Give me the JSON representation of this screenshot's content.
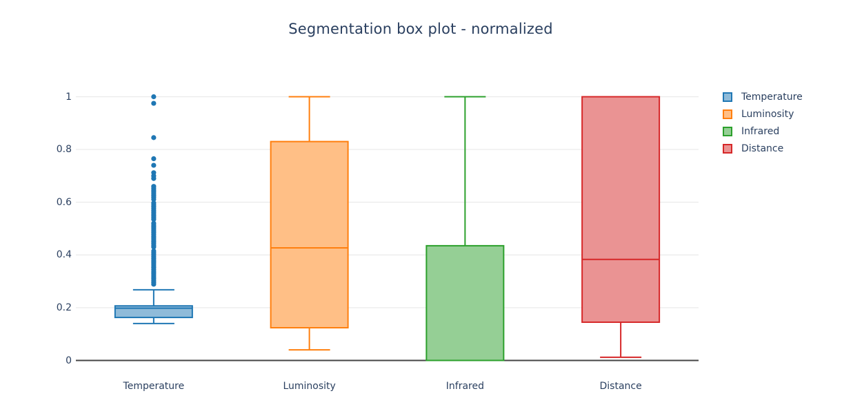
{
  "chart_data": {
    "type": "box",
    "title": "Segmentation box plot - normalized",
    "categories": [
      "Temperature",
      "Luminosity",
      "Infrared",
      "Distance"
    ],
    "yticks": [
      0,
      0.2,
      0.4,
      0.6,
      0.8,
      1
    ],
    "ytick_labels": [
      "0",
      "0.2",
      "0.4",
      "0.6",
      "0.8",
      "1"
    ],
    "ylim": [
      0,
      1
    ],
    "grid": true,
    "legend_position": "right",
    "colors": {
      "grid": "#ebebeb",
      "axis_line": "#444444",
      "font": "#2a3f5f",
      "background": "#ffffff"
    },
    "series": [
      {
        "name": "Temperature",
        "line_color": "#1f77b4",
        "fill_color": "#8fbbd9",
        "stats": {
          "lower_whisker": 0.14,
          "q1": 0.163,
          "median": 0.198,
          "q3": 0.207,
          "upper_whisker": 0.268
        },
        "outliers": [
          1.0,
          0.975,
          0.845,
          0.765,
          0.74,
          0.712,
          0.7,
          0.69,
          0.66,
          0.653,
          0.646,
          0.639,
          0.632,
          0.625,
          0.618,
          0.611,
          0.597,
          0.59,
          0.583,
          0.576,
          0.569,
          0.562,
          0.555,
          0.548,
          0.541,
          0.535,
          0.52,
          0.513,
          0.506,
          0.499,
          0.492,
          0.485,
          0.478,
          0.471,
          0.464,
          0.457,
          0.45,
          0.443,
          0.436,
          0.43,
          0.415,
          0.408,
          0.401,
          0.394,
          0.387,
          0.38,
          0.373,
          0.366,
          0.359,
          0.352,
          0.345,
          0.338,
          0.331,
          0.324,
          0.317,
          0.31,
          0.303,
          0.296,
          0.289
        ]
      },
      {
        "name": "Luminosity",
        "line_color": "#ff7f0e",
        "fill_color": "#ffbf86",
        "stats": {
          "lower_whisker": 0.04,
          "q1": 0.124,
          "median": 0.427,
          "q3": 0.83,
          "upper_whisker": 1.0
        },
        "outliers": []
      },
      {
        "name": "Infrared",
        "line_color": "#2ca02c",
        "fill_color": "#95cf95",
        "stats": {
          "lower_whisker": 0.0,
          "q1": 0.0,
          "median": 0.0,
          "q3": 0.435,
          "upper_whisker": 1.0
        },
        "outliers": []
      },
      {
        "name": "Distance",
        "line_color": "#d62728",
        "fill_color": "#ea9393",
        "stats": {
          "lower_whisker": 0.012,
          "q1": 0.145,
          "median": 0.383,
          "q3": 1.0,
          "upper_whisker": 1.0
        },
        "outliers": []
      }
    ]
  }
}
